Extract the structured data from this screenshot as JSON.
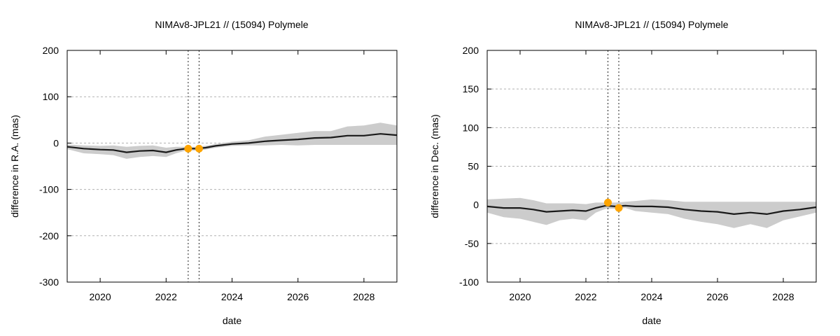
{
  "colors": {
    "band": "#cccccc",
    "line": "#1a1a1a",
    "points": "#ffa500",
    "grid": "#b0b0b0"
  },
  "chart_data": [
    {
      "type": "line",
      "title": "NIMAv8-JPL21 // (15094) Polymele",
      "xlabel": "date",
      "ylabel": "difference in R.A. (mas)",
      "xlim": [
        2019.0,
        2029.0
      ],
      "ylim": [
        -300,
        200
      ],
      "xticks": [
        "2020",
        "2022",
        "2024",
        "2026",
        "2028"
      ],
      "yticks": [
        "-300",
        "-200",
        "-100",
        "0",
        "100",
        "200"
      ],
      "grid": "horizontal dotted",
      "vlines": [
        2022.67,
        2023.0
      ],
      "series": [
        {
          "x": [
            2019.0,
            2019.5,
            2020.0,
            2020.4,
            2020.8,
            2021.2,
            2021.6,
            2022.0,
            2022.3,
            2022.6,
            2022.9,
            2023.2,
            2023.5,
            2024.0,
            2024.5,
            2025.0,
            2025.5,
            2026.0,
            2026.5,
            2027.0,
            2027.5,
            2028.0,
            2028.5,
            2029.0
          ],
          "y": [
            -8,
            -12,
            -14,
            -15,
            -20,
            -17,
            -16,
            -20,
            -15,
            -12,
            -12,
            -10,
            -6,
            -2,
            0,
            4,
            6,
            8,
            11,
            12,
            16,
            16,
            20,
            17
          ]
        }
      ],
      "band": {
        "x": [
          2019.0,
          2019.5,
          2020.0,
          2020.4,
          2020.8,
          2021.2,
          2021.6,
          2022.0,
          2022.3,
          2022.6,
          2022.9,
          2023.2,
          2023.5,
          2024.0,
          2024.5,
          2025.0,
          2025.5,
          2026.0,
          2026.5,
          2027.0,
          2027.5,
          2028.0,
          2028.5,
          2029.0
        ],
        "upper": [
          -3,
          -5,
          -6,
          -5,
          -8,
          -6,
          -5,
          -10,
          -8,
          -8,
          -8,
          -6,
          -2,
          3,
          6,
          14,
          18,
          22,
          26,
          26,
          36,
          38,
          44,
          38
        ],
        "lower": [
          -13,
          -22,
          -24,
          -26,
          -34,
          -30,
          -28,
          -30,
          -22,
          -16,
          -16,
          -14,
          -10,
          -6,
          -5,
          -5,
          -4,
          -5,
          -4,
          -4,
          -4,
          -4,
          -4,
          -4
        ]
      },
      "points": [
        {
          "x": 2022.67,
          "y": -12
        },
        {
          "x": 2023.0,
          "y": -12
        }
      ]
    },
    {
      "type": "line",
      "title": "NIMAv8-JPL21 // (15094) Polymele",
      "xlabel": "date",
      "ylabel": "difference in Dec. (mas)",
      "xlim": [
        2019.0,
        2029.0
      ],
      "ylim": [
        -100,
        200
      ],
      "xticks": [
        "2020",
        "2022",
        "2024",
        "2026",
        "2028"
      ],
      "yticks": [
        "-100",
        "-50",
        "0",
        "50",
        "100",
        "150",
        "200"
      ],
      "grid": "horizontal dotted",
      "vlines": [
        2022.67,
        2023.0
      ],
      "series": [
        {
          "x": [
            2019.0,
            2019.5,
            2020.0,
            2020.4,
            2020.8,
            2021.2,
            2021.6,
            2022.0,
            2022.3,
            2022.6,
            2022.9,
            2023.2,
            2023.5,
            2024.0,
            2024.5,
            2025.0,
            2025.5,
            2026.0,
            2026.5,
            2027.0,
            2027.5,
            2028.0,
            2028.5,
            2029.0
          ],
          "y": [
            -2,
            -4,
            -4,
            -6,
            -9,
            -8,
            -7,
            -8,
            -4,
            -1,
            -2,
            -1,
            -2,
            -2,
            -3,
            -6,
            -8,
            -9,
            -12,
            -10,
            -12,
            -8,
            -6,
            -3
          ]
        }
      ],
      "band": {
        "x": [
          2019.0,
          2019.5,
          2020.0,
          2020.4,
          2020.8,
          2021.2,
          2021.6,
          2022.0,
          2022.3,
          2022.6,
          2022.9,
          2023.2,
          2023.5,
          2024.0,
          2024.5,
          2025.0,
          2025.5,
          2026.0,
          2026.5,
          2027.0,
          2027.5,
          2028.0,
          2028.5,
          2029.0
        ],
        "upper": [
          7,
          8,
          9,
          6,
          2,
          2,
          2,
          1,
          3,
          3,
          3,
          4,
          5,
          7,
          6,
          4,
          4,
          4,
          4,
          4,
          4,
          4,
          4,
          4
        ],
        "lower": [
          -10,
          -16,
          -18,
          -22,
          -26,
          -20,
          -18,
          -20,
          -10,
          -5,
          -5,
          -4,
          -8,
          -10,
          -12,
          -18,
          -22,
          -25,
          -30,
          -25,
          -30,
          -20,
          -15,
          -10
        ]
      },
      "points": [
        {
          "x": 2022.67,
          "y": 3
        },
        {
          "x": 2023.0,
          "y": -4
        }
      ]
    }
  ]
}
